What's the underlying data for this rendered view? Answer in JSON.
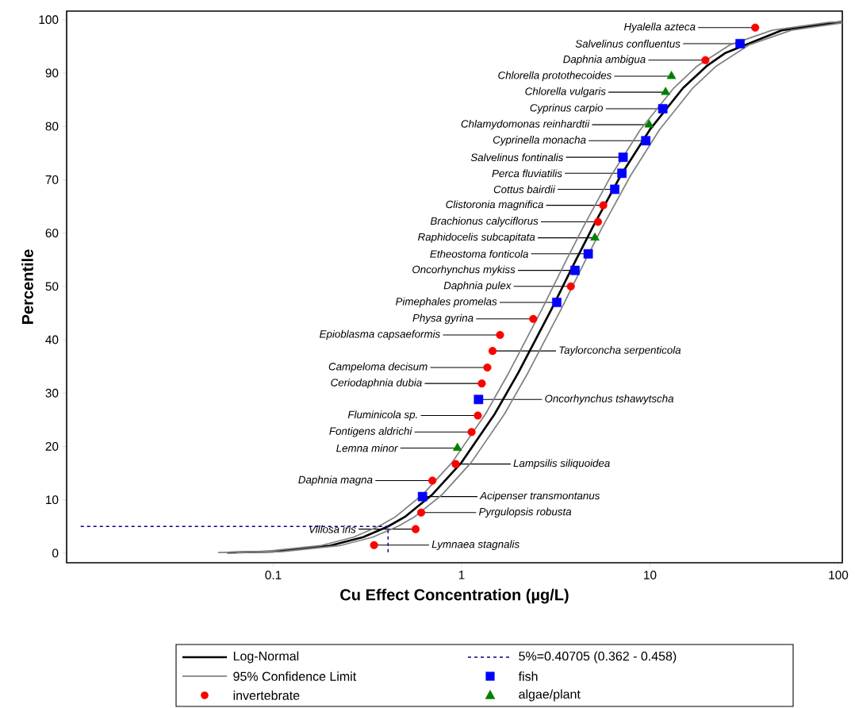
{
  "chart_data": {
    "type": "scatter",
    "xlabel": "Cu Effect Concentration (µg/L)",
    "ylabel": "Percentile",
    "log": "x",
    "xlim": [
      0.008,
      105
    ],
    "ylim": [
      -1.8,
      101.6
    ],
    "xticks": [
      0.1,
      1,
      10,
      100
    ],
    "yticks": [
      0,
      10,
      20,
      30,
      40,
      50,
      60,
      70,
      80,
      90,
      100
    ],
    "grid": false,
    "legend": "bottom",
    "series": [
      {
        "name": "Log-Normal",
        "type": "line",
        "color": "#000000",
        "marker": "none",
        "line_style": "solid",
        "x": [
          0.057,
          0.1,
          0.2,
          0.3,
          0.407,
          0.5,
          0.7,
          1,
          1.5,
          2,
          3,
          4,
          5,
          7,
          10,
          15,
          20,
          25,
          50,
          100,
          105
        ],
        "values": [
          0.1,
          0.3,
          1.4,
          3.0,
          5.0,
          6.8,
          11.0,
          17.0,
          26.1,
          33.8,
          45.7,
          54.6,
          61.3,
          70.8,
          79.4,
          87.2,
          91.3,
          93.7,
          98.0,
          99.5,
          99.6
        ]
      },
      {
        "name": "95% Confidence Limit",
        "type": "line",
        "color": "#808080",
        "marker": "none",
        "line_style": "solid",
        "x": [
          0.051,
          0.089,
          0.178,
          0.267,
          0.362,
          0.445,
          0.623,
          0.89,
          1.34,
          1.78,
          2.67,
          3.56,
          4.45,
          6.23,
          8.9,
          13.4,
          17.8,
          26.7,
          44.5,
          89,
          105
        ],
        "values": [
          0.1,
          0.3,
          1.4,
          3.0,
          5.0,
          6.8,
          11.0,
          17.0,
          26.1,
          33.8,
          45.7,
          54.6,
          61.3,
          70.8,
          79.4,
          87.2,
          91.3,
          95.3,
          98.0,
          99.5,
          99.6
        ]
      },
      {
        "type": "line",
        "color": "#808080",
        "marker": "none",
        "line_style": "solid",
        "x": [
          0.064,
          0.1125,
          0.225,
          0.3375,
          0.458,
          0.5625,
          0.79,
          1.125,
          1.69,
          2.25,
          3.375,
          4.5,
          5.625,
          7.9,
          11.25,
          16.9,
          22.5,
          33.75,
          56.25,
          105
        ],
        "values": [
          0.1,
          0.3,
          1.4,
          3.0,
          5.0,
          6.8,
          11.0,
          17.0,
          26.1,
          33.8,
          45.7,
          54.6,
          61.3,
          70.8,
          79.4,
          87.2,
          91.3,
          95.3,
          98.0,
          99.4
        ]
      },
      {
        "name": "invertebrate",
        "color": "#ff0000",
        "marker": "circle",
        "x": [
          36.2,
          19.7,
          5.65,
          5.3,
          3.8,
          2.4,
          1.6,
          1.46,
          1.37,
          1.28,
          1.22,
          1.13,
          0.93,
          0.7,
          0.61,
          0.57,
          0.343
        ],
        "values": [
          98.5,
          92.4,
          65.2,
          62.1,
          50.0,
          43.9,
          40.9,
          37.9,
          34.8,
          31.8,
          25.8,
          22.7,
          16.7,
          13.6,
          7.6,
          4.5,
          1.5
        ]
      },
      {
        "name": "5%=0.40705 (0.362 - 0.458)",
        "type": "line",
        "color": "#000080",
        "marker": "none",
        "line_style": "dashed",
        "x": [
          0.0095,
          0.40705,
          0.40705
        ],
        "values": [
          5,
          5,
          0
        ]
      },
      {
        "name": "fish",
        "color": "#0000ff",
        "marker": "square",
        "x": [
          30.1,
          11.7,
          9.5,
          7.2,
          7.1,
          6.5,
          4.7,
          4.0,
          3.2,
          1.23,
          0.62
        ],
        "values": [
          95.5,
          83.3,
          77.3,
          74.2,
          71.2,
          68.2,
          56.1,
          53.0,
          47.0,
          28.8,
          10.6
        ]
      },
      {
        "name": "algae/plant",
        "color": "#008000",
        "marker": "triangle",
        "x": [
          13.0,
          12.1,
          9.9,
          5.1,
          0.95
        ],
        "values": [
          89.4,
          86.4,
          80.3,
          59.1,
          19.7
        ]
      }
    ],
    "annotations": [
      {
        "text": "Hyalella azteca",
        "x": 36.2,
        "y": 98.5
      },
      {
        "text": "Salvelinus confluentus",
        "x": 30.1,
        "y": 95.5
      },
      {
        "text": "Daphnia ambigua",
        "x": 19.7,
        "y": 92.4
      },
      {
        "text": "Chlorella protothecoides",
        "x": 13.0,
        "y": 89.4
      },
      {
        "text": "Chlorella vulgaris",
        "x": 12.1,
        "y": 86.4
      },
      {
        "text": "Cyprinus carpio",
        "x": 11.7,
        "y": 83.3
      },
      {
        "text": "Chlamydomonas reinhardtii",
        "x": 9.9,
        "y": 80.3
      },
      {
        "text": "Cyprinella monacha",
        "x": 9.5,
        "y": 77.3
      },
      {
        "text": "Salvelinus fontinalis",
        "x": 7.2,
        "y": 74.2
      },
      {
        "text": "Perca fluviatilis",
        "x": 7.1,
        "y": 71.2
      },
      {
        "text": "Cottus bairdii",
        "x": 6.5,
        "y": 68.2
      },
      {
        "text": "Clistoronia magnifica",
        "x": 5.65,
        "y": 65.2
      },
      {
        "text": "Brachionus calyciflorus",
        "x": 5.3,
        "y": 62.1
      },
      {
        "text": "Raphidocelis subcapitata",
        "x": 5.1,
        "y": 59.1
      },
      {
        "text": "Etheostoma fonticola",
        "x": 4.7,
        "y": 56.1
      },
      {
        "text": "Oncorhynchus mykiss",
        "x": 4.0,
        "y": 53.0
      },
      {
        "text": "Daphnia pulex",
        "x": 3.8,
        "y": 50.0
      },
      {
        "text": "Pimephales promelas",
        "x": 3.2,
        "y": 47.0
      },
      {
        "text": "Physa gyrina",
        "x": 2.4,
        "y": 43.9
      },
      {
        "text": "Epioblasma capsaeformis",
        "x": 1.6,
        "y": 40.9
      },
      {
        "text": "Taylorconcha serpenticola",
        "x": 1.46,
        "y": 37.9
      },
      {
        "text": "Campeloma decisum",
        "x": 1.37,
        "y": 34.8
      },
      {
        "text": "Ceriodaphnia dubia",
        "x": 1.28,
        "y": 31.8
      },
      {
        "text": "Oncorhynchus tshawytscha",
        "x": 1.23,
        "y": 28.8
      },
      {
        "text": "Fluminicola sp.",
        "x": 1.22,
        "y": 25.8
      },
      {
        "text": "Fontigens aldrichi",
        "x": 1.13,
        "y": 22.7
      },
      {
        "text": "Lemna minor",
        "x": 0.95,
        "y": 19.7
      },
      {
        "text": "Lampsilis siliquoidea",
        "x": 0.93,
        "y": 16.7
      },
      {
        "text": "Daphnia magna",
        "x": 0.7,
        "y": 13.6
      },
      {
        "text": "Acipenser transmontanus",
        "x": 0.62,
        "y": 10.6
      },
      {
        "text": "Pyrgulopsis robusta",
        "x": 0.61,
        "y": 7.6
      },
      {
        "text": "Villosa iris",
        "x": 0.57,
        "y": 4.5
      },
      {
        "text": "Lymnaea stagnalis",
        "x": 0.343,
        "y": 1.5
      }
    ]
  }
}
